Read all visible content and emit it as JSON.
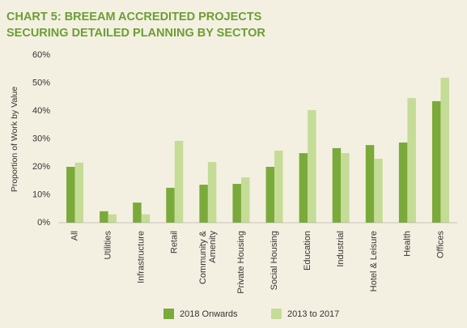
{
  "chart_data": {
    "type": "bar",
    "title": [
      "CHART 5: BREEAM ACCREDITED PROJECTS",
      "SECURING DETAILED PLANNING BY SECTOR"
    ],
    "y_label": "Proportion of Work by Value",
    "categories": [
      "All",
      "Utilities",
      "Infrastructure",
      "Retail",
      "Community &\nAmenity",
      "Private Housing",
      "Social Housing",
      "Education",
      "Industrial",
      "Hotel & Leisure",
      "Health",
      "Offices"
    ],
    "series": [
      {
        "name": "2018 Onwards",
        "color": "#7aaa3a",
        "values": [
          20,
          4.1,
          7.2,
          12.5,
          13.6,
          13.9,
          20,
          24.9,
          26.7,
          27.8,
          28.7,
          43.5
        ]
      },
      {
        "name": "2013 to 2017",
        "color": "#c5dc97",
        "values": [
          21.5,
          3,
          3,
          29.3,
          21.7,
          16.2,
          25.8,
          40.3,
          24.9,
          22.9,
          44.6,
          51.9
        ]
      }
    ],
    "ylim": [
      0,
      60
    ],
    "yticks": [
      {
        "value": 0,
        "label": "0%"
      },
      {
        "value": 10,
        "label": "10%"
      },
      {
        "value": 20,
        "label": "20%"
      },
      {
        "value": 30,
        "label": "30%"
      },
      {
        "value": 40,
        "label": "40%"
      },
      {
        "value": 50,
        "label": "50%"
      },
      {
        "value": 60,
        "label": "60%"
      }
    ],
    "legend": "bottom"
  }
}
